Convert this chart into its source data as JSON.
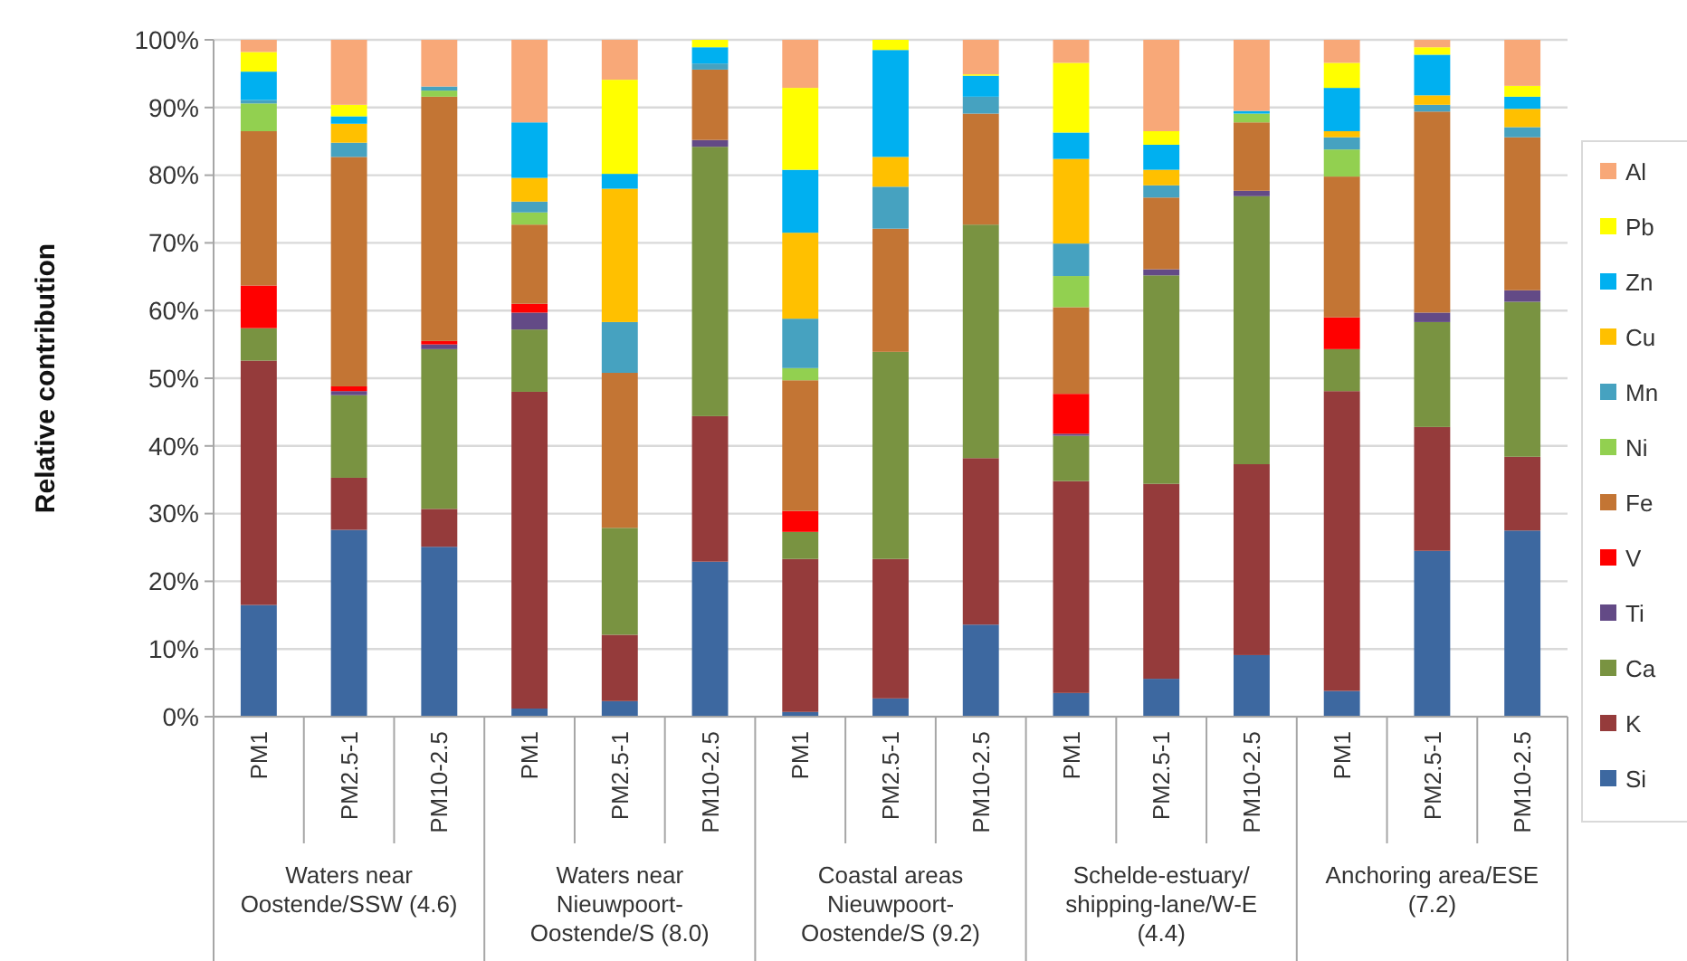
{
  "chart_data": {
    "type": "bar",
    "stacked": true,
    "ylabel": "Relative contribution",
    "categories": [
      "PM1",
      "PM2.5-1",
      "PM10-2.5",
      "PM1",
      "PM2.5-1",
      "PM10-2.5",
      "PM1",
      "PM2.5-1",
      "PM10-2.5",
      "PM1",
      "PM2.5-1",
      "PM10-2.5",
      "PM1",
      "PM2.5-1",
      "PM10-2.5"
    ],
    "annotations": [
      "Waters near Oostende/SSW (4.6)",
      "Waters near Nieuwpoort-Oostende/S (8.0)",
      "Coastal areas Nieuwpoort-Oostende/S (9.2)",
      "Schelde-estuary/shipping-lane/W-E (4.4)",
      "Anchoring area/ESE (7.2)"
    ],
    "series": [
      {
        "name": "Si",
        "color": "#3d68a0",
        "values": [
          16.5,
          27.6,
          25.1,
          1.2,
          2.3,
          22.9,
          0.7,
          2.7,
          13.6,
          3.5,
          5.6,
          9.1,
          3.8,
          24.5,
          27.5
        ]
      },
      {
        "name": "K",
        "color": "#953b3b",
        "values": [
          36.1,
          7.7,
          5.6,
          46.8,
          9.8,
          21.5,
          22.6,
          20.6,
          24.6,
          31.3,
          28.8,
          28.2,
          44.3,
          18.3,
          10.9
        ]
      },
      {
        "name": "Ca",
        "color": "#799341",
        "values": [
          4.8,
          12.2,
          23.6,
          9.2,
          15.8,
          39.8,
          4.0,
          30.6,
          34.5,
          6.7,
          30.8,
          39.6,
          6.2,
          15.5,
          22.9
        ]
      },
      {
        "name": "Ti",
        "color": "#634a86",
        "values": [
          0,
          0.6,
          0.7,
          2.5,
          0,
          1.0,
          0,
          0,
          0,
          0.3,
          0.9,
          0.8,
          0,
          1.4,
          1.7
        ]
      },
      {
        "name": "V",
        "color": "#ff0000",
        "values": [
          6.3,
          0.7,
          0.5,
          1.3,
          0,
          0,
          3.1,
          0,
          0,
          5.9,
          0,
          0,
          4.7,
          0,
          0
        ]
      },
      {
        "name": "Fe",
        "color": "#c37534",
        "values": [
          22.8,
          33.9,
          36.1,
          11.7,
          22.9,
          10.4,
          19.3,
          18.2,
          16.4,
          12.8,
          10.6,
          10.1,
          20.8,
          29.7,
          22.6
        ]
      },
      {
        "name": "Ni",
        "color": "#92d050",
        "values": [
          4.1,
          0,
          0.9,
          1.8,
          0,
          0,
          1.8,
          0,
          0,
          4.6,
          0,
          1.3,
          4.0,
          0,
          0
        ]
      },
      {
        "name": "Mn",
        "color": "#46a2c0",
        "values": [
          0.5,
          2.1,
          0.6,
          1.6,
          7.5,
          0.9,
          7.3,
          6.2,
          2.5,
          4.8,
          1.8,
          0,
          1.8,
          1.0,
          1.5
        ]
      },
      {
        "name": "Cu",
        "color": "#ffc000",
        "values": [
          0,
          2.8,
          0,
          3.5,
          19.7,
          0,
          12.7,
          4.4,
          0,
          12.5,
          2.3,
          0,
          0.9,
          1.4,
          2.7
        ]
      },
      {
        "name": "Zn",
        "color": "#00b0f0",
        "values": [
          4.2,
          1.1,
          0,
          8.2,
          2.2,
          2.4,
          9.3,
          15.8,
          3.1,
          3.9,
          3.7,
          0.4,
          6.4,
          6.0,
          1.8
        ]
      },
      {
        "name": "Pb",
        "color": "#ffff00",
        "values": [
          2.9,
          1.7,
          0,
          0,
          13.9,
          1.1,
          12.1,
          1.5,
          0.2,
          10.3,
          2.0,
          0,
          3.7,
          1.1,
          1.6
        ]
      },
      {
        "name": "Al",
        "color": "#f8a878",
        "values": [
          1.8,
          9.6,
          6.9,
          12.2,
          5.9,
          0,
          7.1,
          0,
          5.1,
          3.4,
          13.5,
          10.5,
          3.4,
          1.1,
          6.8
        ]
      }
    ],
    "ylim": [
      0,
      100
    ],
    "yticks": [
      {
        "value": 0,
        "label": "0%"
      },
      {
        "value": 10,
        "label": "10%"
      },
      {
        "value": 20,
        "label": "20%"
      },
      {
        "value": 30,
        "label": "30%"
      },
      {
        "value": 40,
        "label": "40%"
      },
      {
        "value": 50,
        "label": "50%"
      },
      {
        "value": 60,
        "label": "60%"
      },
      {
        "value": 70,
        "label": "70%"
      },
      {
        "value": 80,
        "label": "80%"
      },
      {
        "value": 90,
        "label": "90%"
      },
      {
        "value": 100,
        "label": "100%"
      }
    ],
    "grid": "y",
    "legend": "right"
  }
}
